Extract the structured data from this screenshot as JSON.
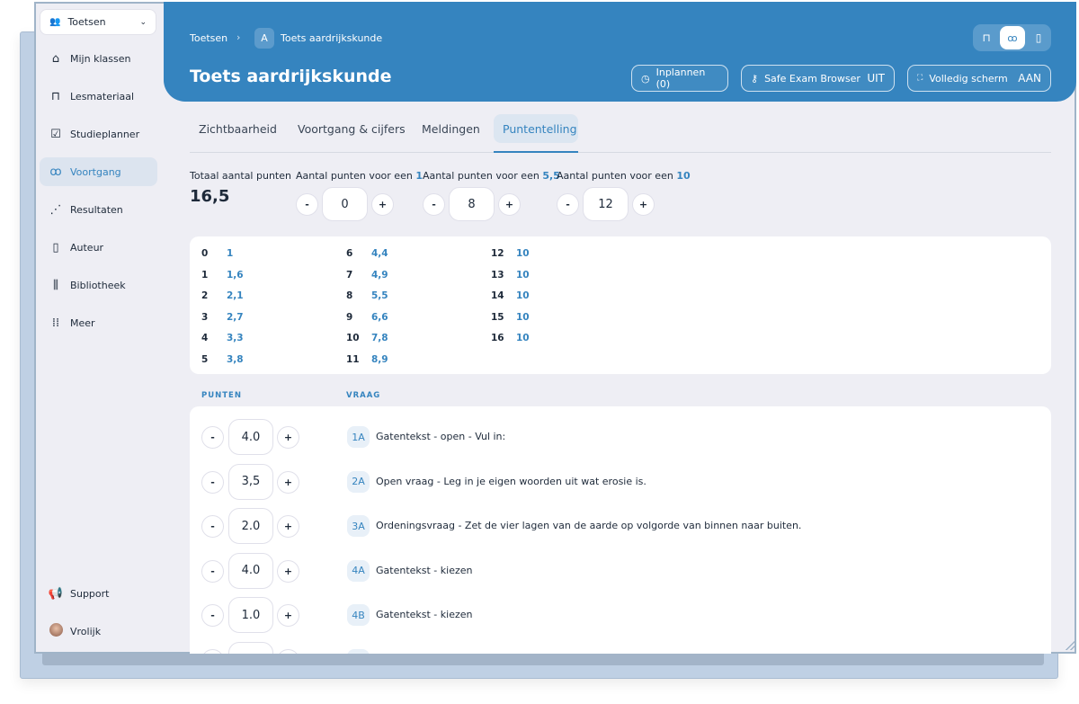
{
  "sidebar": {
    "dropdown": "Toetsen",
    "items": [
      {
        "label": "Mijn klassen",
        "icon": "home-icon"
      },
      {
        "label": "Lesmateriaal",
        "icon": "briefcase-icon"
      },
      {
        "label": "Studieplanner",
        "icon": "calendar-check-icon"
      },
      {
        "label": "Voortgang",
        "icon": "glasses-icon",
        "active": true
      },
      {
        "label": "Resultaten",
        "icon": "scatter-chart-icon"
      },
      {
        "label": "Auteur",
        "icon": "author-icon"
      },
      {
        "label": "Bibliotheek",
        "icon": "library-icon"
      },
      {
        "label": "Meer",
        "icon": "grid-icon"
      }
    ],
    "support": "Support",
    "user": "Vrolijk"
  },
  "header": {
    "breadcrumb": [
      "Toetsen",
      "Toets aardrijkskunde"
    ],
    "breadcrumb_badge": "A",
    "title": "Toets aardrijkskunde",
    "inplannen": "Inplannen (0)",
    "seb_label": "Safe Exam Browser",
    "seb_state": "UIT",
    "fullscreen_label": "Volledig scherm",
    "fullscreen_state": "AAN",
    "accent": "#3584bf"
  },
  "tabs": [
    "Zichtbaarheid",
    "Voortgang & cijfers",
    "Meldingen",
    "Puntentelling"
  ],
  "points": {
    "total_label": "Totaal aantal punten",
    "total": "16,5",
    "prefix": "Aantal punten voor een",
    "grades": [
      {
        "grade": "1",
        "value": "0"
      },
      {
        "grade": "5,5",
        "value": "8"
      },
      {
        "grade": "10",
        "value": "12"
      }
    ]
  },
  "score_table": [
    [
      "0",
      "1"
    ],
    [
      "1",
      "1,6"
    ],
    [
      "2",
      "2,1"
    ],
    [
      "3",
      "2,7"
    ],
    [
      "4",
      "3,3"
    ],
    [
      "5",
      "3,8"
    ],
    [
      "6",
      "4,4"
    ],
    [
      "7",
      "4,9"
    ],
    [
      "8",
      "5,5"
    ],
    [
      "9",
      "6,6"
    ],
    [
      "10",
      "7,8"
    ],
    [
      "11",
      "8,9"
    ],
    [
      "12",
      "10"
    ],
    [
      "13",
      "10"
    ],
    [
      "14",
      "10"
    ],
    [
      "15",
      "10"
    ],
    [
      "16",
      "10"
    ]
  ],
  "questions": {
    "col_points": "PUNTEN",
    "col_question": "VRAAG",
    "rows": [
      {
        "points": "4.0",
        "id": "1A",
        "text": "Gatentekst - open - Vul in:"
      },
      {
        "points": "3,5",
        "id": "2A",
        "text": "Open vraag - Leg in je eigen woorden uit wat erosie is."
      },
      {
        "points": "2.0",
        "id": "3A",
        "text": "Ordeningsvraag - Zet de vier lagen van de aarde op volgorde van binnen naar buiten."
      },
      {
        "points": "4.0",
        "id": "4A",
        "text": "Gatentekst - kiezen"
      },
      {
        "points": "1.0",
        "id": "4B",
        "text": "Gatentekst - kiezen"
      }
    ]
  },
  "stepper": {
    "minus": "-",
    "plus": "+"
  }
}
